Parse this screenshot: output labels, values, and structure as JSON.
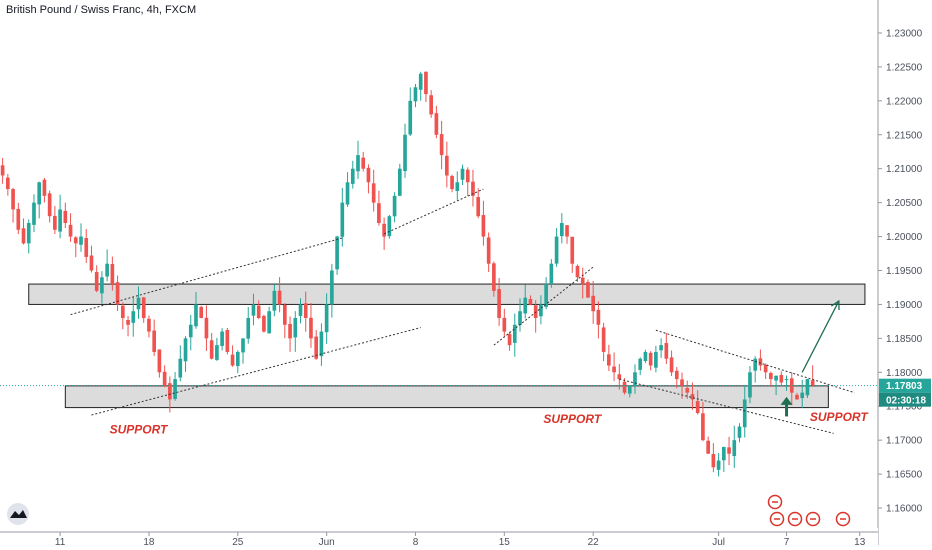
{
  "header": {
    "title": "British Pound / Swiss Franc, 4h, FXCM"
  },
  "colors": {
    "up": "#26a69a",
    "down": "#ef5350",
    "zone_fill": "#d6d6d6",
    "zone_stroke": "#222222",
    "price_line": "#26a69a",
    "annotation": "#d9342b"
  },
  "chart_data": {
    "type": "candlestick",
    "symbol": "GBPCHF",
    "timeframe": "4h",
    "ylim": [
      1.1575,
      1.2325
    ],
    "y_ticks": [
      1.16,
      1.165,
      1.17,
      1.175,
      1.18,
      1.185,
      1.19,
      1.195,
      1.2,
      1.205,
      1.21,
      1.215,
      1.22,
      1.225,
      1.23
    ],
    "x_ticks": [
      {
        "label": "11",
        "bar": 11
      },
      {
        "label": "18",
        "bar": 28
      },
      {
        "label": "25",
        "bar": 45
      },
      {
        "label": "Jun",
        "bar": 62
      },
      {
        "label": "8",
        "bar": 79
      },
      {
        "label": "15",
        "bar": 96
      },
      {
        "label": "22",
        "bar": 113
      },
      {
        "label": "Jul",
        "bar": 137
      },
      {
        "label": "7",
        "bar": 150
      },
      {
        "label": "13",
        "bar": 164
      }
    ],
    "bars_visible": 168,
    "current_price": 1.17803,
    "current_price_label": "1.17803",
    "countdown_label": "02:30:18",
    "closes": [
      1.209,
      1.207,
      1.204,
      1.201,
      1.199,
      1.202,
      1.205,
      1.208,
      1.206,
      1.203,
      1.201,
      1.204,
      1.202,
      1.2,
      1.199,
      1.2,
      1.197,
      1.195,
      1.192,
      1.194,
      1.196,
      1.193,
      1.19,
      1.188,
      1.187,
      1.189,
      1.191,
      1.188,
      1.186,
      1.183,
      1.18,
      1.178,
      1.176,
      1.179,
      1.182,
      1.185,
      1.187,
      1.19,
      1.188,
      1.185,
      1.182,
      1.184,
      1.186,
      1.183,
      1.181,
      1.183,
      1.185,
      1.188,
      1.19,
      1.188,
      1.186,
      1.189,
      1.192,
      1.19,
      1.187,
      1.185,
      1.188,
      1.19,
      1.188,
      1.185,
      1.182,
      1.186,
      1.19,
      1.195,
      1.2,
      1.205,
      1.208,
      1.21,
      1.212,
      1.21,
      1.208,
      1.205,
      1.202,
      1.2,
      1.203,
      1.206,
      1.21,
      1.215,
      1.22,
      1.222,
      1.224,
      1.221,
      1.218,
      1.215,
      1.212,
      1.209,
      1.207,
      1.208,
      1.21,
      1.208,
      1.206,
      1.203,
      1.2,
      1.196,
      1.192,
      1.188,
      1.186,
      1.184,
      1.187,
      1.189,
      1.191,
      1.19,
      1.188,
      1.19,
      1.193,
      1.196,
      1.2,
      1.202,
      1.2,
      1.196,
      1.194,
      1.193,
      1.191,
      1.189,
      1.187,
      1.183,
      1.181,
      1.18,
      1.179,
      1.177,
      1.178,
      1.18,
      1.182,
      1.183,
      1.181,
      1.183,
      1.184,
      1.182,
      1.18,
      1.179,
      1.178,
      1.177,
      1.176,
      1.174,
      1.17,
      1.168,
      1.166,
      1.167,
      1.169,
      1.168,
      1.17,
      1.172,
      1.176,
      1.18,
      1.182,
      1.181,
      1.18,
      1.179,
      1.1795,
      1.1785,
      1.179,
      1.177,
      1.176,
      1.177,
      1.179,
      1.17803
    ],
    "zones": [
      {
        "from_bar": 5,
        "to_bar": 165,
        "y_low": 1.19,
        "y_high": 1.193
      },
      {
        "from_bar": 12,
        "to_bar": 158,
        "y_low": 1.1748,
        "y_high": 1.178
      }
    ],
    "trendlines": [
      {
        "from": [
          13,
          1.1885
        ],
        "to": [
          65,
          1.1998
        ]
      },
      {
        "from": [
          17,
          1.1737
        ],
        "to": [
          80,
          1.1866
        ]
      },
      {
        "from": [
          73,
          1.2004
        ],
        "to": [
          92,
          1.207
        ]
      },
      {
        "from": [
          94,
          1.184
        ],
        "to": [
          113,
          1.1955
        ]
      },
      {
        "from": [
          125,
          1.1862
        ],
        "to": [
          163,
          1.177
        ]
      },
      {
        "from": [
          118,
          1.179
        ],
        "to": [
          159,
          1.171
        ]
      }
    ],
    "arrows": [
      {
        "from": [
          153,
          1.18
        ],
        "to": [
          160,
          1.1905
        ],
        "color": "#1f6f50",
        "thin": true
      },
      {
        "from": [
          150,
          1.1735
        ],
        "to": [
          150,
          1.1755
        ],
        "color": "#1f6f50",
        "thin": false
      }
    ],
    "annotations": [
      {
        "text": "SUPPORT",
        "bar": 26,
        "price": 1.171
      },
      {
        "text": "SUPPORT",
        "bar": 109,
        "price": 1.1725
      },
      {
        "text": "SUPPORT",
        "bar": 160,
        "price": 1.1728
      }
    ]
  }
}
